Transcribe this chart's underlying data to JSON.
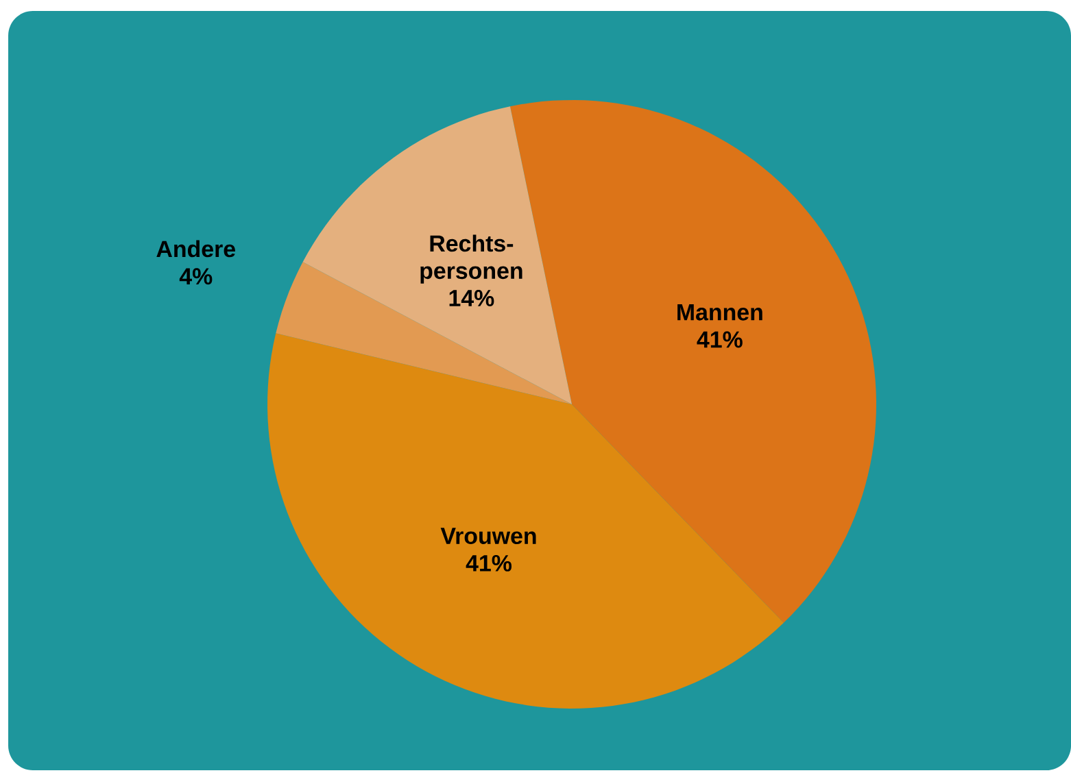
{
  "chart_data": {
    "type": "pie",
    "categories": [
      "Mannen",
      "Vrouwen",
      "Andere",
      "Rechts-personen"
    ],
    "values": [
      41,
      41,
      4,
      14
    ],
    "value_labels": [
      "41%",
      "41%",
      "4%",
      "14%"
    ],
    "colors": [
      "#dc7418",
      "#de8a10",
      "#e29a52",
      "#e4b07e"
    ]
  }
}
